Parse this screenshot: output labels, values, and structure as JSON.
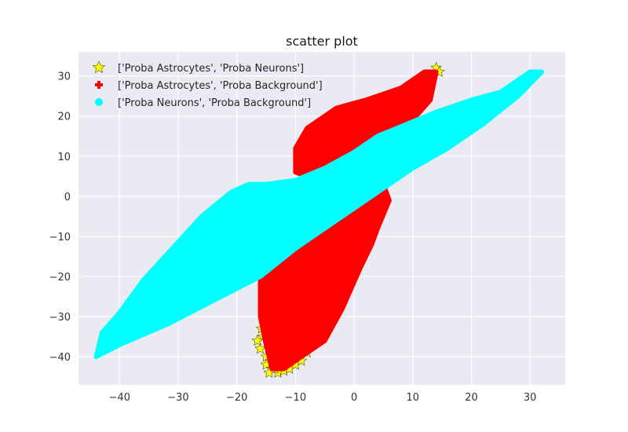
{
  "chart_data": {
    "type": "scatter",
    "title": "scatter plot",
    "xlabel": "",
    "ylabel": "",
    "xlim": [
      -47,
      36
    ],
    "ylim": [
      -47,
      36
    ],
    "x_ticks": [
      -40,
      -30,
      -20,
      -10,
      0,
      10,
      20,
      30
    ],
    "y_ticks": [
      -40,
      -30,
      -20,
      -10,
      0,
      10,
      20,
      30
    ],
    "x_tick_labels": [
      "−40",
      "−30",
      "−20",
      "−10",
      "0",
      "10",
      "20",
      "30"
    ],
    "y_tick_labels": [
      "−40",
      "−30",
      "−20",
      "−10",
      "0",
      "10",
      "20",
      "30"
    ],
    "grid": true,
    "legend_position": "top-left",
    "series": [
      {
        "name": "['Proba Astrocytes', 'Proba Neurons']",
        "marker": "star",
        "color": "#ffff00",
        "edge_color": "#555500",
        "x": [
          -15.5,
          -16,
          -15,
          -14,
          -13,
          -12,
          -11,
          -10,
          -9,
          -8,
          -7,
          -6,
          -5,
          -4,
          -3,
          -2,
          -1,
          0,
          1,
          2,
          3,
          4,
          5,
          6,
          7,
          8,
          9,
          10,
          11,
          12,
          13,
          14,
          14.5,
          -15,
          -14.5,
          -13.5,
          -12.5,
          -16.5,
          -15.8,
          -6.5,
          -3.5,
          -2.5
        ],
        "y": [
          -35,
          -38,
          -42,
          -43,
          -44,
          -43.5,
          -43,
          -42,
          -41,
          -39,
          -37,
          -35,
          -32,
          -28,
          -25,
          -20,
          -15,
          -10,
          -6,
          -2,
          2,
          6,
          10,
          14,
          18,
          20,
          22,
          24,
          26,
          28,
          30,
          32,
          31,
          -40,
          -44,
          -43,
          -42,
          -36,
          -33,
          -36,
          -26,
          -22
        ]
      },
      {
        "name": "['Proba Astrocytes', 'Proba Background']",
        "marker": "plus",
        "color": "#ff0000",
        "regions": [
          {
            "points": [
              [
                -10,
                12
              ],
              [
                -8,
                17
              ],
              [
                -3,
                22
              ],
              [
                2,
                24
              ],
              [
                8,
                27
              ],
              [
                12,
                31
              ],
              [
                14,
                31
              ],
              [
                13,
                24
              ],
              [
                10,
                19
              ],
              [
                6,
                14
              ],
              [
                2,
                10
              ],
              [
                -2,
                9
              ],
              [
                -6,
                7
              ],
              [
                -8,
                5
              ],
              [
                -10,
                6
              ],
              [
                -10,
                12
              ]
            ]
          },
          {
            "points": [
              [
                -15,
                -37
              ],
              [
                -14,
                -43
              ],
              [
                -12,
                -43
              ],
              [
                -9,
                -40
              ],
              [
                -5,
                -36
              ],
              [
                -2,
                -28
              ],
              [
                1,
                -18
              ],
              [
                3,
                -12
              ],
              [
                4,
                -8
              ],
              [
                6,
                -1
              ],
              [
                5,
                3
              ],
              [
                3,
                4
              ],
              [
                0,
                1
              ],
              [
                -3,
                -3
              ],
              [
                -6,
                -7
              ],
              [
                -10,
                -12
              ],
              [
                -13,
                -17
              ],
              [
                -16,
                -21
              ],
              [
                -16,
                -30
              ],
              [
                -15,
                -37
              ]
            ]
          }
        ]
      },
      {
        "name": "['Proba Neurons', 'Proba Background']",
        "marker": "circle",
        "color": "#00ffff",
        "regions": [
          {
            "points": [
              [
                -44,
                -40
              ],
              [
                -40,
                -37
              ],
              [
                -32,
                -32
              ],
              [
                -24,
                -26
              ],
              [
                -16,
                -20
              ],
              [
                -10,
                -13
              ],
              [
                -5,
                -8
              ],
              [
                0,
                -3
              ],
              [
                5,
                2
              ],
              [
                10,
                7
              ],
              [
                16,
                12
              ],
              [
                22,
                18
              ],
              [
                28,
                25
              ],
              [
                32,
                31
              ],
              [
                30,
                31
              ],
              [
                25,
                26
              ],
              [
                20,
                24
              ],
              [
                14,
                21
              ],
              [
                9,
                18
              ],
              [
                4,
                15
              ],
              [
                0,
                11
              ],
              [
                -5,
                7
              ],
              [
                -10,
                4
              ],
              [
                -15,
                3
              ],
              [
                -18,
                3
              ],
              [
                -21,
                1
              ],
              [
                -26,
                -5
              ],
              [
                -31,
                -13
              ],
              [
                -36,
                -21
              ],
              [
                -40,
                -29
              ],
              [
                -43,
                -34
              ],
              [
                -44,
                -40
              ]
            ]
          }
        ]
      }
    ]
  }
}
